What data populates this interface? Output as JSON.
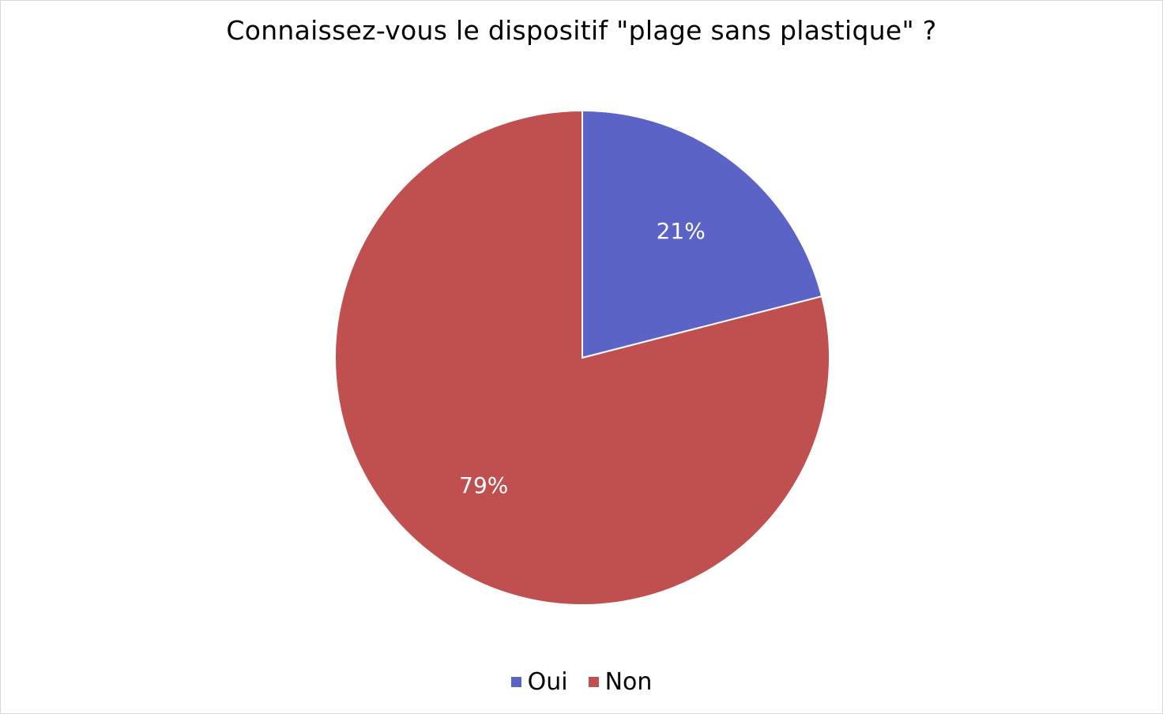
{
  "chart_data": {
    "type": "pie",
    "title": "Connaissez-vous le dispositif \"plage sans plastique\" ?",
    "categories": [
      "Oui",
      "Non"
    ],
    "values": [
      21,
      79
    ],
    "data_labels": [
      "21%",
      "79%"
    ],
    "colors": [
      "#5B63C7",
      "#C0504F"
    ],
    "legend": "bottom"
  }
}
